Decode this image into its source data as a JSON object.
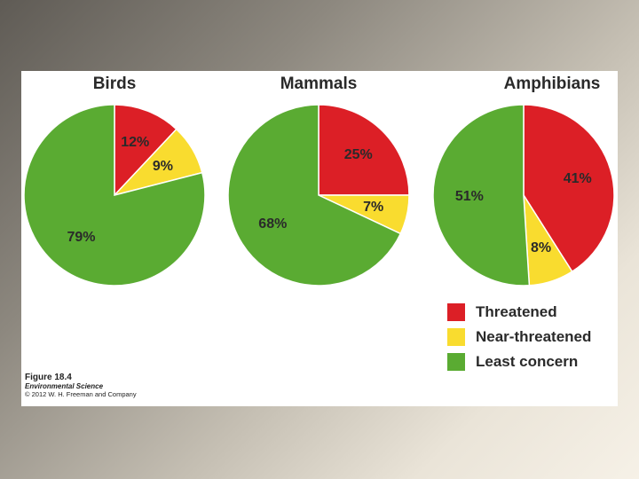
{
  "chart_data": [
    {
      "type": "pie",
      "title": "Birds",
      "categories": [
        "Threatened",
        "Near-threatened",
        "Least concern"
      ],
      "values": [
        12,
        9,
        79
      ],
      "labels": [
        "12%",
        "9%",
        "79%"
      ]
    },
    {
      "type": "pie",
      "title": "Mammals",
      "categories": [
        "Threatened",
        "Near-threatened",
        "Least concern"
      ],
      "values": [
        25,
        7,
        68
      ],
      "labels": [
        "25%",
        "7%",
        "68%"
      ]
    },
    {
      "type": "pie",
      "title": "Amphibians",
      "categories": [
        "Threatened",
        "Near-threatened",
        "Least concern"
      ],
      "values": [
        41,
        8,
        51
      ],
      "labels": [
        "41%",
        "8%",
        "51%"
      ]
    }
  ],
  "legend": {
    "placement": "bottom-right",
    "items": [
      {
        "label": "Threatened",
        "color": "#dc1f26"
      },
      {
        "label": "Near-threatened",
        "color": "#f9dc2f"
      },
      {
        "label": "Least concern",
        "color": "#5aab32"
      }
    ]
  },
  "caption": {
    "figure": "Figure 18.4",
    "book": "Environmental Science",
    "copyright": "© 2012 W. H. Freeman and Company"
  }
}
